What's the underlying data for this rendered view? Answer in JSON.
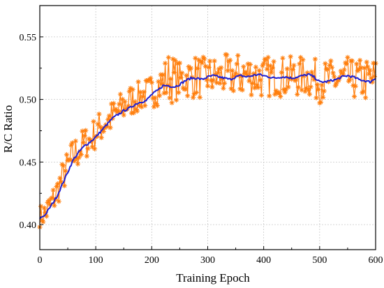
{
  "chart_data": {
    "type": "line",
    "title": "",
    "xlabel": "Training Epoch",
    "ylabel": "R/C Ratio",
    "xlim": [
      0,
      600
    ],
    "ylim": [
      0.38,
      0.575
    ],
    "xticks": [
      0,
      100,
      200,
      300,
      400,
      500,
      600
    ],
    "yticks": [
      0.4,
      0.45,
      0.5,
      0.55
    ],
    "xtick_labels": [
      "0",
      "100",
      "200",
      "300",
      "400",
      "500",
      "600"
    ],
    "ytick_labels": [
      "0.40",
      "0.45",
      "0.50",
      "0.55"
    ],
    "grid": true,
    "legend": "none",
    "series": [
      {
        "role": "raw",
        "marker": "asterisk",
        "color": "#ff7f0e",
        "x": [
          0,
          10,
          20,
          30,
          40,
          50,
          60,
          70,
          80,
          90,
          100,
          110,
          120,
          130,
          140,
          150,
          160,
          170,
          180,
          190,
          200,
          210,
          220,
          230,
          240,
          250,
          260,
          270,
          280,
          290,
          300,
          310,
          320,
          330,
          340,
          350,
          360,
          370,
          380,
          390,
          400,
          410,
          420,
          430,
          440,
          450,
          460,
          470,
          480,
          490,
          500,
          510,
          520,
          530,
          540,
          550,
          560,
          570,
          580,
          590,
          600
        ],
        "y_low": [
          0.398,
          0.398,
          0.405,
          0.412,
          0.425,
          0.432,
          0.44,
          0.445,
          0.452,
          0.455,
          0.46,
          0.465,
          0.47,
          0.472,
          0.478,
          0.48,
          0.485,
          0.488,
          0.49,
          0.492,
          0.493,
          0.495,
          0.497,
          0.496,
          0.498,
          0.5,
          0.502,
          0.5,
          0.501,
          0.5,
          0.503,
          0.502,
          0.503,
          0.502,
          0.502,
          0.503,
          0.501,
          0.502,
          0.503,
          0.502,
          0.5,
          0.502,
          0.503,
          0.502,
          0.501,
          0.503,
          0.502,
          0.503,
          0.502,
          0.5,
          0.497,
          0.5,
          0.501,
          0.5,
          0.499,
          0.5,
          0.5,
          0.499,
          0.498,
          0.497,
          0.5
        ],
        "y_high": [
          0.415,
          0.42,
          0.428,
          0.438,
          0.45,
          0.46,
          0.47,
          0.474,
          0.478,
          0.48,
          0.488,
          0.492,
          0.495,
          0.5,
          0.503,
          0.51,
          0.512,
          0.513,
          0.515,
          0.517,
          0.52,
          0.525,
          0.53,
          0.538,
          0.535,
          0.53,
          0.532,
          0.535,
          0.536,
          0.534,
          0.534,
          0.535,
          0.532,
          0.537,
          0.534,
          0.535,
          0.54,
          0.537,
          0.536,
          0.534,
          0.535,
          0.535,
          0.533,
          0.534,
          0.536,
          0.534,
          0.535,
          0.534,
          0.534,
          0.533,
          0.53,
          0.531,
          0.532,
          0.531,
          0.532,
          0.534,
          0.531,
          0.533,
          0.532,
          0.534,
          0.533
        ]
      },
      {
        "role": "smoothed",
        "color": "#1f1fd0",
        "x": [
          0,
          10,
          20,
          30,
          40,
          50,
          60,
          70,
          80,
          90,
          100,
          110,
          120,
          130,
          140,
          150,
          160,
          170,
          180,
          190,
          200,
          210,
          220,
          230,
          240,
          250,
          260,
          270,
          280,
          290,
          300,
          310,
          320,
          330,
          340,
          350,
          360,
          370,
          380,
          390,
          400,
          410,
          420,
          430,
          440,
          450,
          460,
          470,
          480,
          490,
          500,
          510,
          520,
          530,
          540,
          550,
          560,
          570,
          580,
          590,
          600
        ],
        "y": [
          0.405,
          0.408,
          0.415,
          0.422,
          0.432,
          0.442,
          0.452,
          0.458,
          0.463,
          0.466,
          0.47,
          0.475,
          0.48,
          0.485,
          0.488,
          0.491,
          0.493,
          0.496,
          0.498,
          0.499,
          0.504,
          0.507,
          0.511,
          0.511,
          0.51,
          0.512,
          0.515,
          0.517,
          0.517,
          0.516,
          0.518,
          0.519,
          0.518,
          0.517,
          0.516,
          0.518,
          0.519,
          0.518,
          0.519,
          0.52,
          0.519,
          0.518,
          0.517,
          0.518,
          0.518,
          0.517,
          0.518,
          0.519,
          0.52,
          0.518,
          0.514,
          0.514,
          0.515,
          0.516,
          0.518,
          0.519,
          0.518,
          0.516,
          0.515,
          0.514,
          0.517
        ]
      }
    ]
  }
}
